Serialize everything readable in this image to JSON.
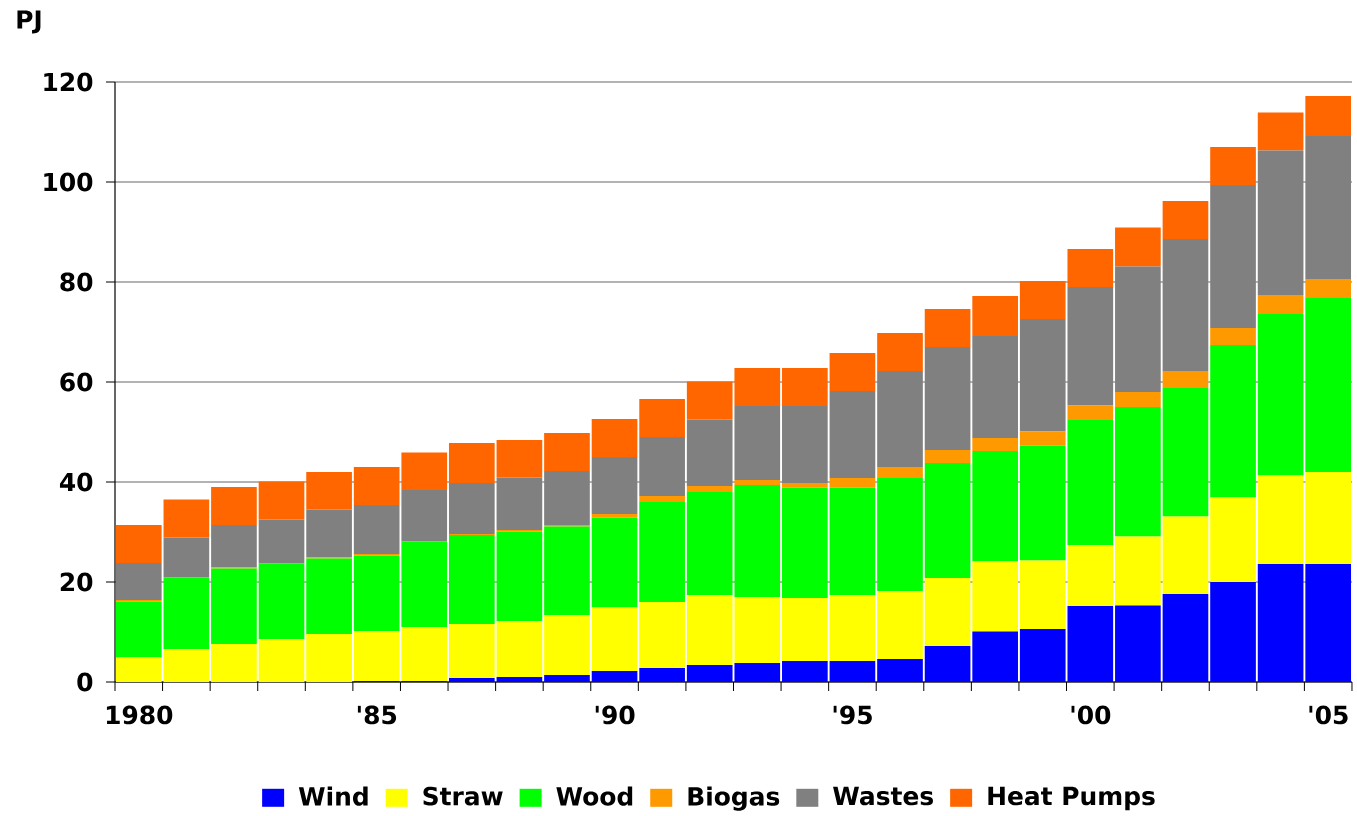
{
  "chart_data": {
    "type": "bar",
    "ylabel": "PJ",
    "stacked": true,
    "grid": "y",
    "legend": "bottom",
    "categories": [
      "1980",
      null,
      null,
      null,
      null,
      "'85",
      null,
      null,
      null,
      null,
      "'90",
      null,
      null,
      null,
      null,
      "'95",
      null,
      null,
      null,
      null,
      "'00",
      null,
      null,
      null,
      null,
      "'05"
    ],
    "ylim": [
      0,
      120
    ],
    "yticks": [
      0,
      20,
      40,
      60,
      80,
      100,
      120
    ],
    "series": [
      {
        "name": "Wind",
        "color": "#0000ff",
        "values": [
          0,
          0,
          0,
          0,
          0,
          0.2,
          0.2,
          0.8,
          1.0,
          1.4,
          2.2,
          2.8,
          3.4,
          3.8,
          4.2,
          4.2,
          4.6,
          7.2,
          10.1,
          10.6,
          15.2,
          15.3,
          17.6,
          20.0,
          23.6,
          23.6
        ]
      },
      {
        "name": "Straw",
        "color": "#ffff00",
        "values": [
          4.9,
          6.6,
          7.6,
          8.6,
          9.6,
          10.0,
          10.8,
          10.8,
          11.2,
          12.0,
          12.7,
          13.2,
          14.0,
          13.2,
          12.6,
          13.2,
          13.6,
          13.6,
          14.0,
          13.7,
          12.2,
          13.8,
          15.5,
          16.9,
          17.7,
          18.4
        ]
      },
      {
        "name": "Wood",
        "color": "#00ff00",
        "values": [
          11.2,
          14.3,
          15.1,
          15.1,
          15.1,
          15.1,
          17.1,
          17.8,
          17.9,
          17.7,
          18.0,
          20.0,
          20.6,
          22.4,
          22.1,
          21.5,
          22.6,
          23.0,
          22.1,
          23.0,
          25.0,
          25.9,
          25.7,
          30.5,
          32.3,
          34.8
        ]
      },
      {
        "name": "Biogas",
        "color": "#ff9900",
        "values": [
          0.3,
          null,
          0.2,
          null,
          0.2,
          0.3,
          null,
          0.2,
          0.3,
          0.3,
          0.7,
          1.2,
          1.2,
          1.0,
          0.9,
          1.9,
          2.2,
          2.6,
          2.6,
          2.8,
          2.9,
          3.0,
          3.4,
          3.4,
          3.8,
          3.8
        ]
      },
      {
        "name": "Wastes",
        "color": "#808080",
        "values": [
          7.4,
          8.0,
          8.5,
          8.8,
          9.6,
          9.8,
          10.3,
          10.2,
          10.5,
          10.8,
          11.4,
          11.8,
          13.3,
          14.8,
          15.4,
          17.4,
          19.2,
          20.6,
          20.4,
          22.5,
          23.7,
          25.1,
          26.4,
          28.6,
          28.9,
          28.6
        ]
      },
      {
        "name": "Heat Pumps",
        "color": "#ff6600",
        "values": [
          7.6,
          7.6,
          7.6,
          7.6,
          7.5,
          7.6,
          7.5,
          8.0,
          7.5,
          7.6,
          7.6,
          7.6,
          7.6,
          7.6,
          7.6,
          7.6,
          7.6,
          7.6,
          8.0,
          7.6,
          7.6,
          7.8,
          7.6,
          7.6,
          7.6,
          8.0
        ]
      }
    ]
  }
}
